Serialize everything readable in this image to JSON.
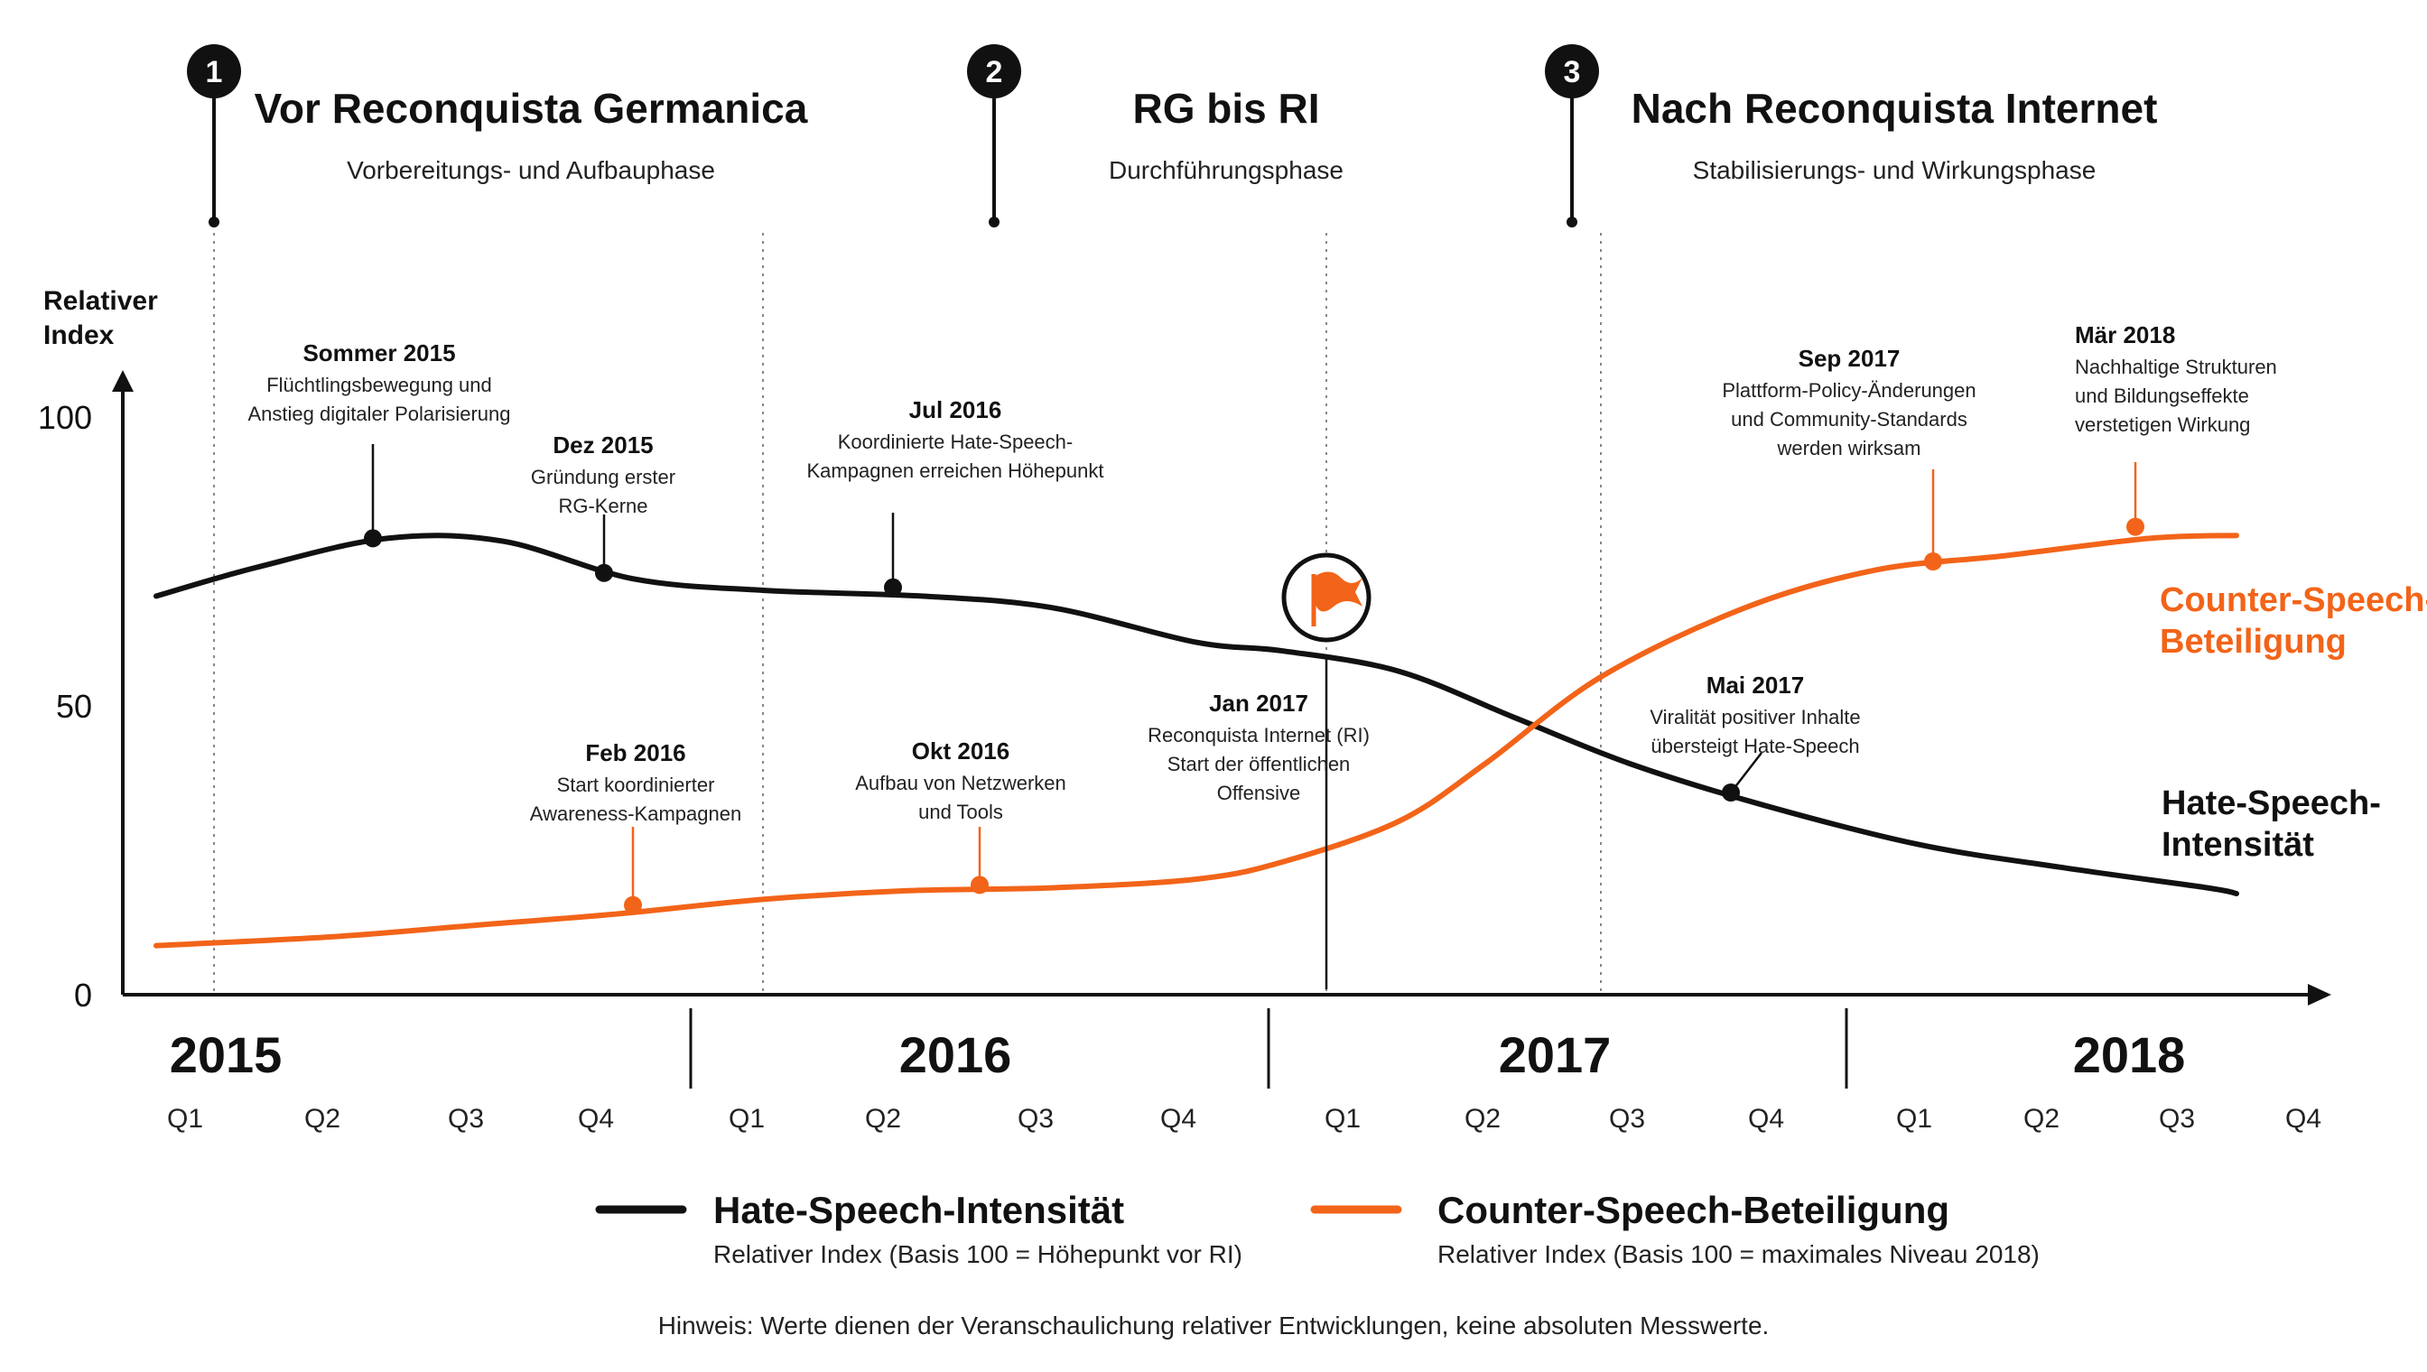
{
  "colors": {
    "hate": "#111111",
    "counter": "#f26419",
    "axis": "#111111",
    "guide": "#888888"
  },
  "icons": {
    "phase_badges": "numbered-pin-icon",
    "marker": "flag-icon"
  },
  "phases": [
    {
      "number": "1",
      "title": "Vor Reconquista Germanica",
      "subtitle": "Vorbereitungs- und Aufbauphase",
      "marker_t": 0.2
    },
    {
      "number": "2",
      "title": "RG bis RI",
      "subtitle": "Durchführungsphase",
      "marker_t": 5.6
    },
    {
      "number": "3",
      "title": "Nach Reconquista Internet",
      "subtitle": "Stabilisierungs- und Wirkungsphase",
      "marker_t": 9.6
    }
  ],
  "chart_data": {
    "type": "line",
    "ylabel": "Relativer Index",
    "ylim": [
      0,
      100
    ],
    "y_ticks": [
      0,
      50,
      100
    ],
    "years": [
      "2015",
      "2016",
      "2017",
      "2018"
    ],
    "quarters": [
      "Q1",
      "Q2",
      "Q3",
      "Q4",
      "Q1",
      "Q2",
      "Q3",
      "Q4",
      "Q1",
      "Q2",
      "Q3",
      "Q4",
      "Q1",
      "Q2",
      "Q3",
      "Q4"
    ],
    "x_unit": "quarters since Q1 2015",
    "year_dividers": [
      3.5,
      7.5,
      11.5
    ],
    "guides": [
      0.2,
      4.0,
      7.9,
      9.8
    ],
    "series": [
      {
        "name": "Hate-Speech-Intensität",
        "end_label": [
          "Hate-Speech-",
          "Intensität"
        ],
        "legend_sub": "Relativer Index (Basis 100 = Höhepunkt vor RI)",
        "color": "#111111",
        "x": [
          -0.2,
          0.5,
          1.4,
          2.2,
          3.1,
          4.0,
          5.1,
          6.0,
          7.0,
          7.6,
          8.4,
          9.2,
          10.0,
          10.9,
          12.0,
          13.0,
          14.0,
          14.2
        ],
        "y": [
          69,
          74,
          79,
          78.5,
          72,
          70,
          69,
          67,
          61,
          59.5,
          56,
          48,
          40,
          33,
          26,
          22,
          18.5,
          17.5
        ]
      },
      {
        "name": "Counter-Speech-Beteiligung",
        "end_label": [
          "Counter-Speech-",
          "Beteiligung"
        ],
        "legend_sub": "Relativer Index (Basis 100 = maximales Niveau 2018)",
        "color": "#f26419",
        "x": [
          -0.2,
          1.0,
          2.0,
          3.0,
          4.0,
          5.0,
          6.0,
          7.0,
          7.6,
          8.4,
          9.0,
          9.8,
          10.8,
          11.7,
          12.6,
          13.6,
          14.2
        ],
        "y": [
          8.5,
          10,
          12,
          14,
          16.5,
          18,
          18.5,
          20,
          23,
          30,
          40,
          55,
          67,
          73.5,
          76,
          79,
          79.5
        ]
      }
    ],
    "annotations": [
      {
        "series": 0,
        "x": 1.3,
        "y": 79,
        "title": "Sommer 2015",
        "lines": [
          "Flüchtlingsbewegung und",
          "Anstieg digitaler Polarisierung"
        ],
        "dir": "up"
      },
      {
        "series": 0,
        "x": 2.9,
        "y": 73,
        "title": "Dez 2015",
        "lines": [
          "Gründung erster",
          "RG-Kerne"
        ],
        "dir": "up"
      },
      {
        "series": 0,
        "x": 4.9,
        "y": 70.5,
        "title": "Jul 2016",
        "lines": [
          "Koordinierte Hate-Speech-",
          "Kampagnen erreichen Höhepunkt"
        ],
        "dir": "up"
      },
      {
        "series": 1,
        "x": 3.1,
        "y": 15.5,
        "title": "Feb 2016",
        "lines": [
          "Start koordinierter",
          "Awareness-Kampagnen"
        ],
        "dir": "up"
      },
      {
        "series": 1,
        "x": 5.5,
        "y": 19,
        "title": "Okt 2016",
        "lines": [
          "Aufbau von Netzwerken",
          "und Tools"
        ],
        "dir": "up"
      },
      {
        "series": 0,
        "x": 7.9,
        "y": 59.5,
        "title": "Jan 2017",
        "lines": [
          "Reconquista Internet (RI)",
          "Start der öffentlichen",
          "Offensive"
        ],
        "dir": "flag"
      },
      {
        "series": 1,
        "x": 12.1,
        "y": 75,
        "title": "Sep 2017",
        "lines": [
          "Plattform-Policy-Änderungen",
          "und Community-Standards",
          "werden wirksam"
        ],
        "dir": "up"
      },
      {
        "series": 1,
        "x": 13.5,
        "y": 81,
        "title": "Mär 2018",
        "lines": [
          "Nachhaltige Strukturen",
          "und Bildungseffekte",
          "verstetigen Wirkung"
        ],
        "dir": "up-left"
      },
      {
        "series": 0,
        "x": 10.7,
        "y": 35,
        "title": "Mai 2017",
        "lines": [
          "Viralität positiver Inhalte",
          "übersteigt Hate-Speech"
        ],
        "dir": "up-right"
      }
    ]
  },
  "note": "Hinweis: Werte dienen der Veranschaulichung relativer Entwicklungen, keine absoluten Messwerte."
}
